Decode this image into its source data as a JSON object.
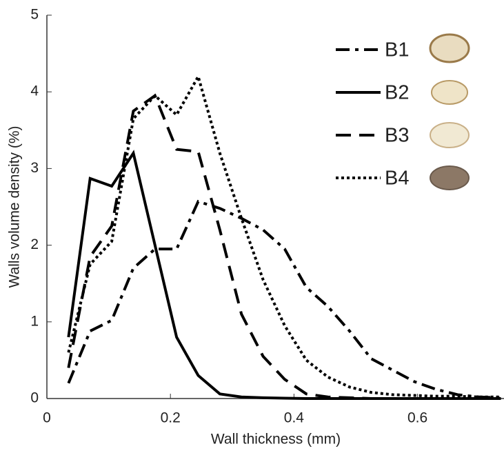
{
  "chart_data": {
    "type": "line",
    "xlabel": "Wall thickness (mm)",
    "ylabel": "Walls volume density (%)",
    "x": [
      0.035,
      0.07,
      0.105,
      0.14,
      0.175,
      0.21,
      0.245,
      0.28,
      0.315,
      0.35,
      0.385,
      0.42,
      0.455,
      0.49,
      0.525,
      0.56,
      0.595,
      0.63,
      0.665,
      0.7,
      0.735
    ],
    "series": [
      {
        "name": "B1",
        "color": "#000000",
        "linestyle": "dashdot",
        "values": [
          0.2,
          0.88,
          1.02,
          1.7,
          1.95,
          1.95,
          2.57,
          2.48,
          2.35,
          2.2,
          1.95,
          1.45,
          1.2,
          0.88,
          0.52,
          0.37,
          0.22,
          0.12,
          0.05,
          0.02,
          0.01
        ]
      },
      {
        "name": "B2",
        "color": "#000000",
        "linestyle": "solid",
        "values": [
          0.8,
          2.87,
          2.77,
          3.2,
          2.0,
          0.8,
          0.3,
          0.06,
          0.02,
          0.01,
          0.005,
          0,
          0,
          0,
          0,
          0,
          0,
          0,
          0,
          0,
          0
        ]
      },
      {
        "name": "B3",
        "color": "#000000",
        "linestyle": "dashed",
        "values": [
          0.4,
          1.85,
          2.25,
          3.75,
          3.95,
          3.25,
          3.22,
          2.2,
          1.1,
          0.55,
          0.25,
          0.06,
          0.02,
          0.01,
          0,
          0,
          0,
          0,
          0,
          0,
          0
        ]
      },
      {
        "name": "B4",
        "color": "#000000",
        "linestyle": "dotted",
        "values": [
          0.6,
          1.75,
          2.05,
          3.65,
          3.95,
          3.7,
          4.2,
          3.2,
          2.35,
          1.55,
          0.95,
          0.5,
          0.28,
          0.15,
          0.08,
          0.05,
          0.04,
          0.03,
          0.03,
          0.02,
          0.02
        ]
      }
    ],
    "xlim": [
      0,
      0.74
    ],
    "ylim": [
      0,
      5
    ],
    "xticks": [
      0,
      0.2,
      0.4,
      0.6
    ],
    "yticks": [
      0,
      1,
      2,
      3,
      4,
      5
    ],
    "grid": false,
    "legend": "upper right"
  }
}
